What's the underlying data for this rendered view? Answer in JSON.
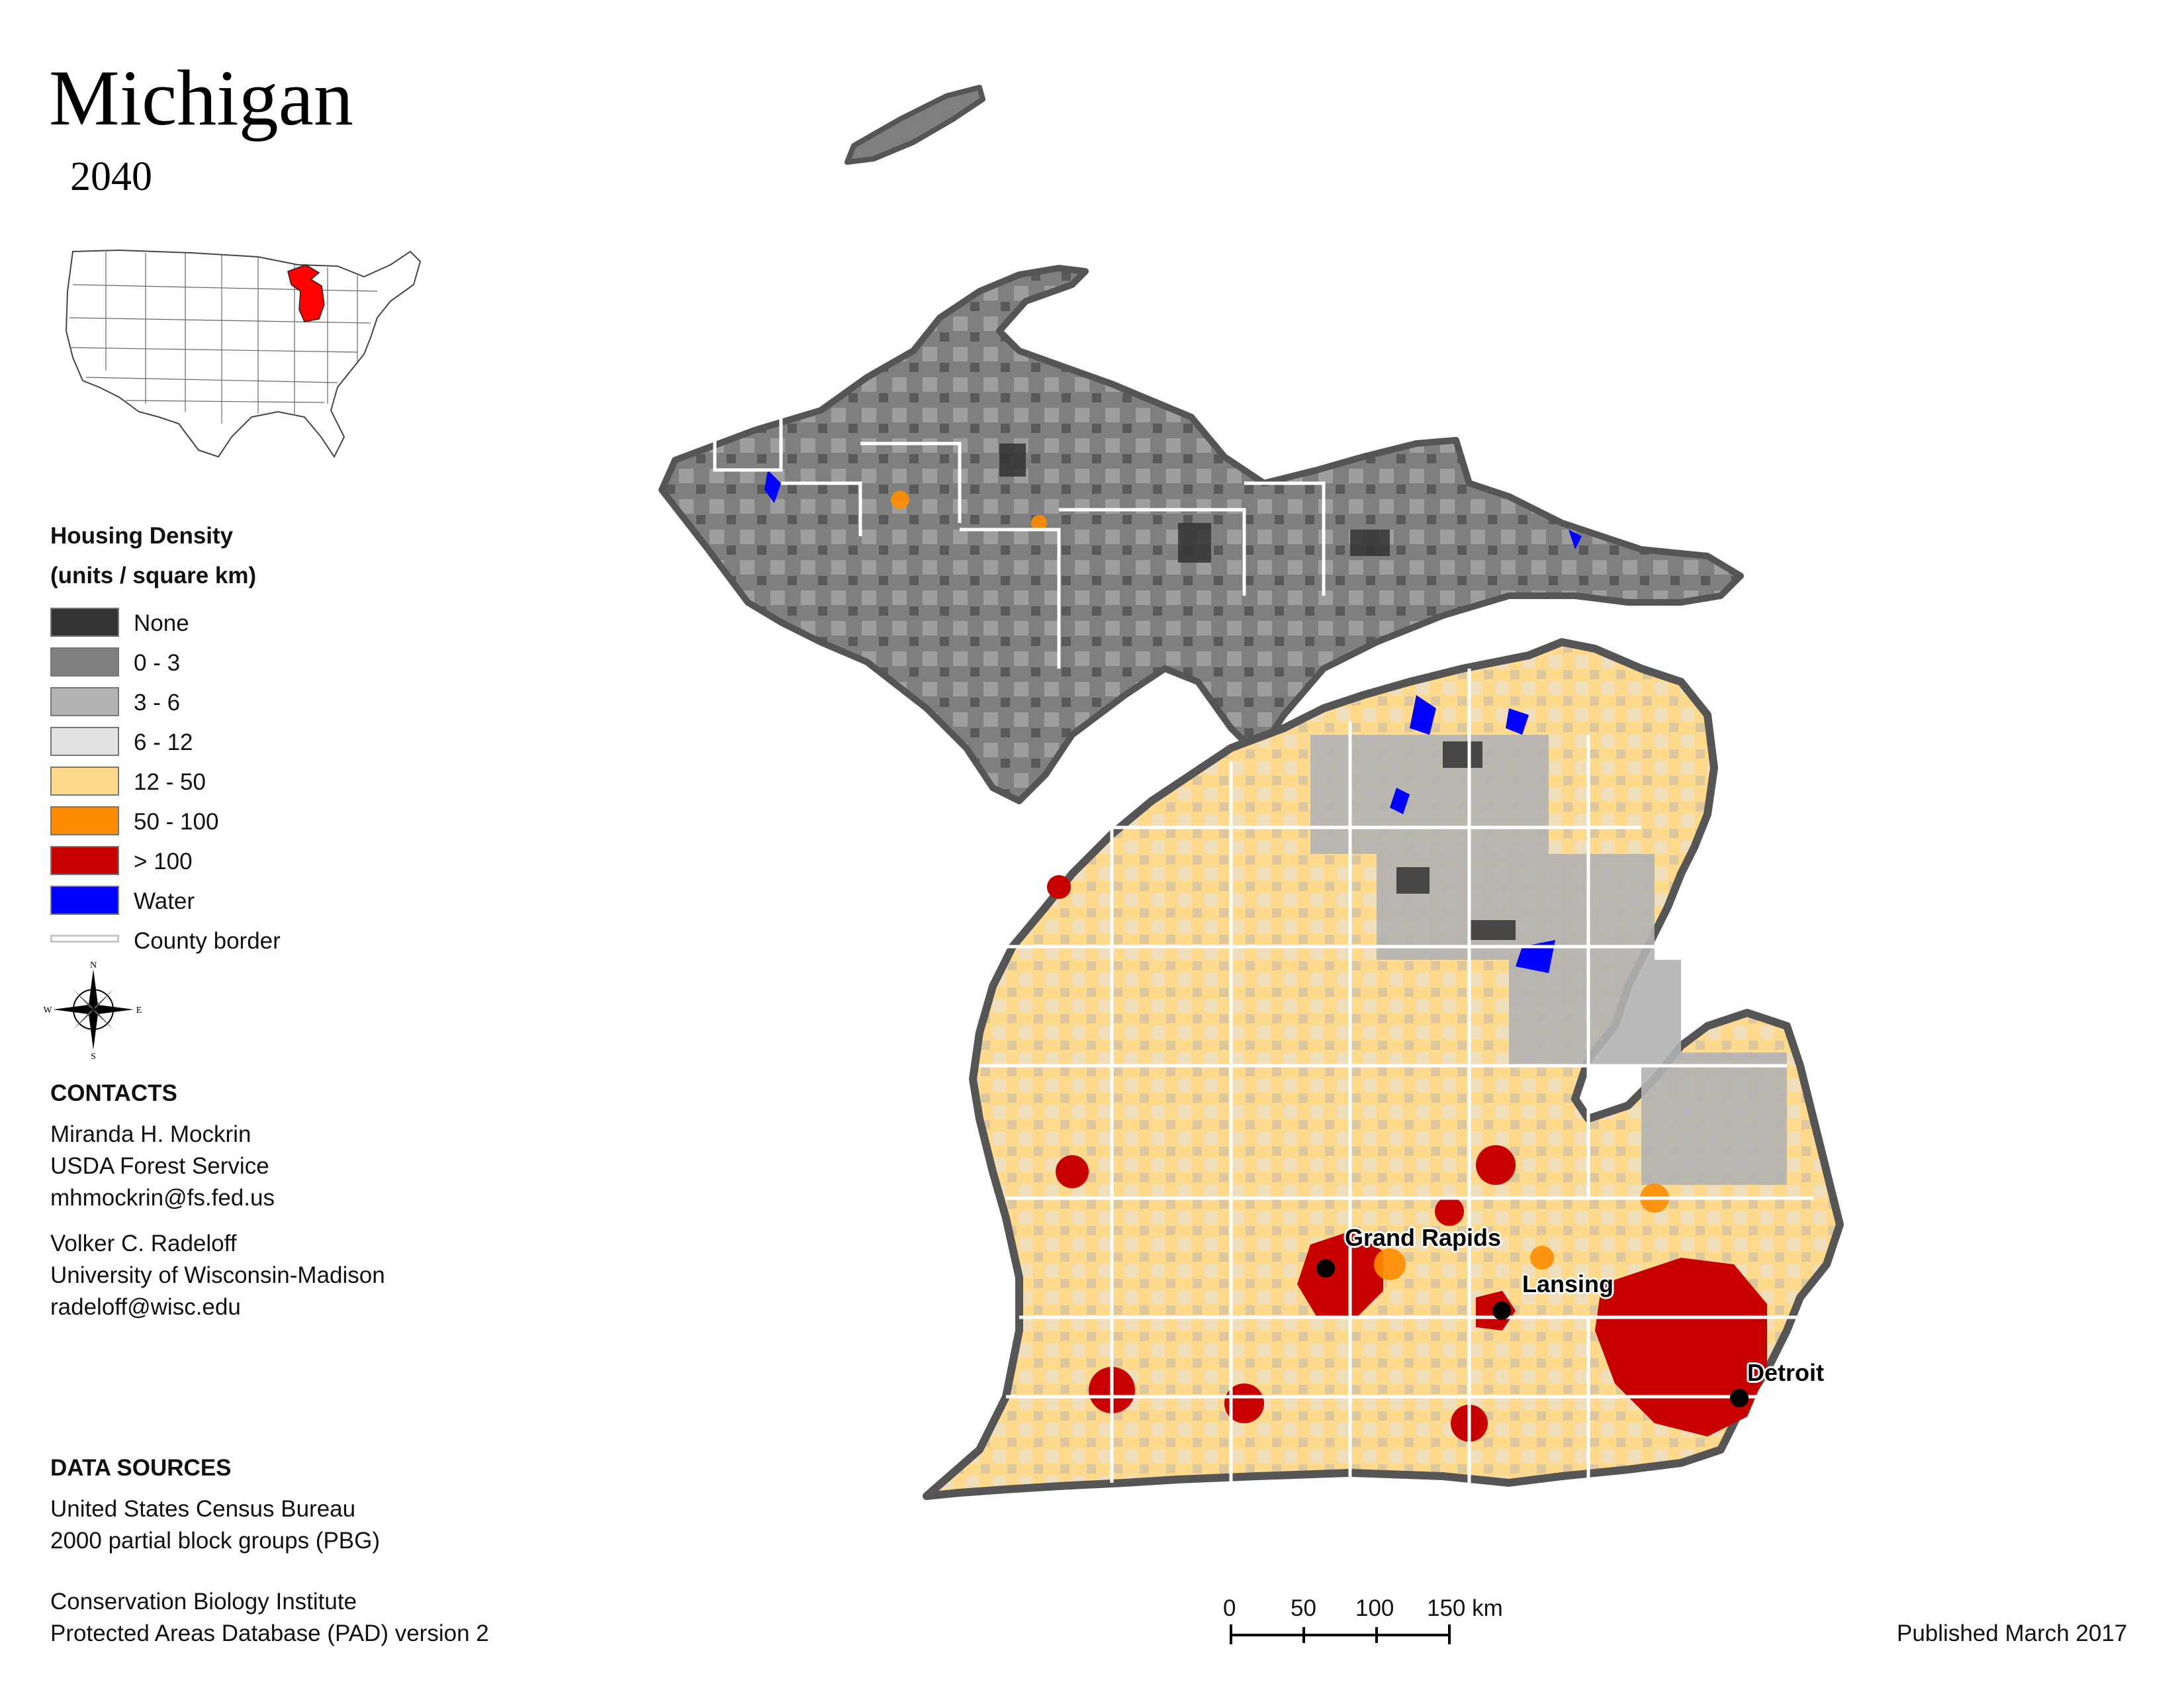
{
  "title": "Michigan",
  "subtitle": "2040",
  "legend": {
    "title_line1": "Housing Density",
    "title_line2": "(units / square km)",
    "items": [
      {
        "label": "None",
        "color": "#333333"
      },
      {
        "label": "0 - 3",
        "color": "#7f7f7f"
      },
      {
        "label": "3 - 6",
        "color": "#b3b3b3"
      },
      {
        "label": "6 - 12",
        "color": "#e1e1e1"
      },
      {
        "label": "12 - 50",
        "color": "#ffd98c"
      },
      {
        "label": "50 - 100",
        "color": "#ff8c00"
      },
      {
        "label": "> 100",
        "color": "#c80000"
      },
      {
        "label": "Water",
        "color": "#0000ff"
      }
    ],
    "county_border_label": "County border"
  },
  "compass": {
    "n": "N",
    "s": "S",
    "e": "E",
    "w": "W"
  },
  "contacts": {
    "heading": "CONTACTS",
    "person1": {
      "name": "Miranda H. Mockrin",
      "org": "USDA Forest Service",
      "email": "mhmockrin@fs.fed.us"
    },
    "person2": {
      "name": "Volker C. Radeloff",
      "org": "University of Wisconsin-Madison",
      "email": "radeloff@wisc.edu"
    }
  },
  "data_sources": {
    "heading": "DATA SOURCES",
    "line1": "United States Census Bureau",
    "line2": "2000 partial block groups (PBG)",
    "line3": "Conservation Biology Institute",
    "line4": "Protected Areas Database (PAD) version 2"
  },
  "cities": [
    {
      "name": "Grand Rapids"
    },
    {
      "name": "Lansing"
    },
    {
      "name": "Detroit"
    }
  ],
  "scale": {
    "labels": [
      "0",
      "50",
      "100",
      "150 km"
    ]
  },
  "published": "Published March 2017"
}
